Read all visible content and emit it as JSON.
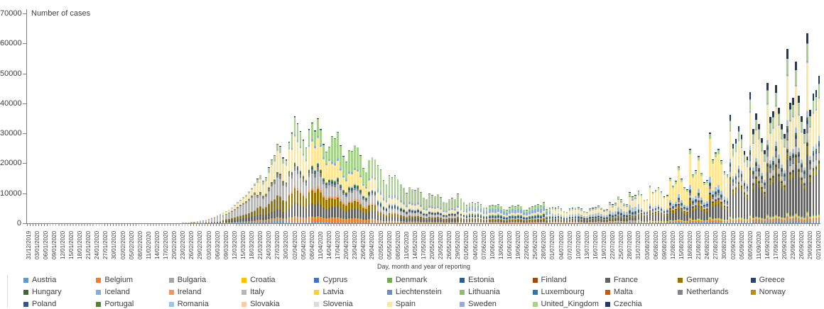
{
  "chart_data": {
    "type": "bar",
    "stacked": true,
    "ylabel": "Number of cases",
    "xlabel": "Day, month and year of reporting",
    "ylim": [
      0,
      70000
    ],
    "yticks": [
      0,
      10000,
      20000,
      30000,
      40000,
      50000,
      60000,
      70000
    ],
    "grid": false,
    "legend_position": "bottom",
    "x_start_date": "31/12/2019",
    "x_end_date": "02/10/2020",
    "bar_frequency": "daily",
    "n_bars": 277,
    "x_tick_labels": [
      "31/12/2019",
      "03/01/2020",
      "06/01/2020",
      "09/01/2020",
      "12/01/2020",
      "15/01/2020",
      "18/01/2020",
      "21/01/2020",
      "24/01/2020",
      "27/01/2020",
      "30/01/2020",
      "02/02/2020",
      "05/02/2020",
      "08/02/2020",
      "11/02/2020",
      "14/02/2020",
      "17/02/2020",
      "20/02/2020",
      "23/02/2020",
      "26/02/2020",
      "29/02/2020",
      "03/03/2020",
      "06/03/2020",
      "09/03/2020",
      "12/03/2020",
      "15/03/2020",
      "18/03/2020",
      "21/03/2020",
      "24/03/2020",
      "27/03/2020",
      "30/03/2020",
      "02/04/2020",
      "05/04/2020",
      "08/04/2020",
      "11/04/2020",
      "14/04/2020",
      "17/04/2020",
      "20/04/2020",
      "23/04/2020",
      "26/04/2020",
      "29/04/2020",
      "02/05/2020",
      "05/05/2020",
      "08/05/2020",
      "11/05/2020",
      "14/05/2020",
      "17/05/2020",
      "20/05/2020",
      "23/05/2020",
      "26/05/2020",
      "29/05/2020",
      "01/06/2020",
      "04/06/2020",
      "07/06/2020",
      "10/06/2020",
      "13/06/2020",
      "16/06/2020",
      "19/06/2020",
      "22/06/2020",
      "25/06/2020",
      "28/06/2020",
      "01/07/2020",
      "04/07/2020",
      "07/07/2020",
      "10/07/2020",
      "13/07/2020",
      "16/07/2020",
      "19/07/2020",
      "22/07/2020",
      "25/07/2020",
      "28/07/2020",
      "31/07/2020",
      "03/08/2020",
      "06/08/2020",
      "09/08/2020",
      "12/08/2020",
      "15/08/2020",
      "18/08/2020",
      "21/08/2020",
      "24/08/2020",
      "27/08/2020",
      "30/08/2020",
      "02/09/2020",
      "05/09/2020",
      "08/09/2020",
      "11/09/2020",
      "14/09/2020",
      "17/09/2020",
      "20/09/2020",
      "23/09/2020",
      "26/09/2020",
      "29/09/2020",
      "02/10/2020"
    ],
    "countries": [
      {
        "name": "Austria",
        "color": "#5B9BD5"
      },
      {
        "name": "Belgium",
        "color": "#ED7D31"
      },
      {
        "name": "Bulgaria",
        "color": "#A5A5A5"
      },
      {
        "name": "Croatia",
        "color": "#FFC000"
      },
      {
        "name": "Cyprus",
        "color": "#4472C4"
      },
      {
        "name": "Denmark",
        "color": "#70AD47"
      },
      {
        "name": "Estonia",
        "color": "#255E91"
      },
      {
        "name": "Finland",
        "color": "#9E480E"
      },
      {
        "name": "France",
        "color": "#636363"
      },
      {
        "name": "Germany",
        "color": "#997300"
      },
      {
        "name": "Greece",
        "color": "#264478"
      },
      {
        "name": "Hungary",
        "color": "#43682B"
      },
      {
        "name": "Iceland",
        "color": "#7CAFDD"
      },
      {
        "name": "Ireland",
        "color": "#F1975A"
      },
      {
        "name": "Italy",
        "color": "#B7B7B7"
      },
      {
        "name": "Latvia",
        "color": "#FFCD33"
      },
      {
        "name": "Liechtenstein",
        "color": "#698ED0"
      },
      {
        "name": "Lithuania",
        "color": "#8CC168"
      },
      {
        "name": "Luxembourg",
        "color": "#2E75B6"
      },
      {
        "name": "Malta",
        "color": "#C55A11"
      },
      {
        "name": "Netherlands",
        "color": "#848484"
      },
      {
        "name": "Norway",
        "color": "#BF8F00"
      },
      {
        "name": "Poland",
        "color": "#2F5597"
      },
      {
        "name": "Portugal",
        "color": "#548235"
      },
      {
        "name": "Romania",
        "color": "#9DC3E6"
      },
      {
        "name": "Slovakia",
        "color": "#F8CBAD"
      },
      {
        "name": "Slovenia",
        "color": "#DBDBDB"
      },
      {
        "name": "Spain",
        "color": "#FFE699"
      },
      {
        "name": "Sweden",
        "color": "#8FAADC"
      },
      {
        "name": "United_Kingdom",
        "color": "#A9D18E"
      },
      {
        "name": "Czechia",
        "color": "#1F3864"
      }
    ],
    "daily_totals": [
      0,
      0,
      0,
      0,
      0,
      0,
      0,
      0,
      0,
      0,
      0,
      0,
      0,
      0,
      0,
      0,
      0,
      0,
      0,
      0,
      0,
      0,
      0,
      0,
      0,
      0,
      0,
      0,
      0,
      0,
      0,
      0,
      0,
      0,
      0,
      0,
      0,
      0,
      0,
      0,
      0,
      0,
      0,
      0,
      0,
      0,
      0,
      0,
      0,
      0,
      0,
      30,
      60,
      100,
      150,
      220,
      300,
      420,
      550,
      700,
      850,
      1000,
      1200,
      1500,
      1850,
      2200,
      2600,
      3000,
      3500,
      4000,
      4600,
      5300,
      6100,
      7000,
      7900,
      8700,
      9400,
      10600,
      11900,
      13300,
      14800,
      16200,
      14200,
      15400,
      18600,
      21400,
      22800,
      26600,
      25800,
      21900,
      21200,
      27200,
      30200,
      35600,
      33400,
      30800,
      27800,
      25400,
      31400,
      33600,
      30900,
      35100,
      31400,
      26400,
      23900,
      25600,
      29100,
      28400,
      30600,
      25900,
      22400,
      20600,
      24400,
      24100,
      26100,
      25400,
      22600,
      18400,
      17100,
      21100,
      22100,
      21400,
      19400,
      17900,
      14400,
      13100,
      16100,
      15400,
      16000,
      14700,
      13100,
      11900,
      10100,
      12100,
      11400,
      11100,
      11900,
      10400,
      8600,
      8100,
      9900,
      9400,
      9100,
      9700,
      8700,
      7100,
      6900,
      8100,
      8400,
      8100,
      9900,
      8300,
      7100,
      6100,
      6900,
      7100,
      6600,
      7100,
      6300,
      5300,
      5100,
      5900,
      6100,
      5900,
      6400,
      5700,
      4800,
      4400,
      5400,
      5900,
      5600,
      6100,
      5700,
      4600,
      4400,
      5100,
      5600,
      5900,
      6400,
      5900,
      7100,
      4700,
      5100,
      5400,
      5100,
      5600,
      4900,
      4100,
      3900,
      4900,
      5100,
      5300,
      5400,
      4900,
      4100,
      3900,
      4900,
      5100,
      5400,
      5900,
      5300,
      4400,
      4700,
      7100,
      6300,
      6900,
      9100,
      8100,
      6700,
      6400,
      10300,
      8900,
      9400,
      10900,
      9700,
      7900,
      8100,
      12600,
      10400,
      11100,
      12100,
      10700,
      8900,
      9400,
      15100,
      12600,
      14100,
      18900,
      14900,
      12100,
      11300,
      24800,
      16400,
      17700,
      22400,
      16900,
      13700,
      14400,
      30200,
      21300,
      23600,
      24800,
      21100,
      17300,
      16400,
      36200,
      26400,
      28100,
      32400,
      29600,
      24100,
      22300,
      43700,
      31400,
      36600,
      33100,
      28400,
      24400,
      46900,
      35400,
      37400,
      46100,
      38600,
      33100,
      29900,
      58100,
      40200,
      41800,
      54000,
      42500,
      35800,
      31500,
      63400,
      37800,
      43300,
      44500,
      49200
    ],
    "composition_phases": [
      {
        "from": 0,
        "to": 51,
        "mix": {
          "Italy": 1
        }
      },
      {
        "from": 51,
        "to": 68,
        "mix": {
          "Austria": 0.01,
          "Belgium": 0.01,
          "France": 0.08,
          "Germany": 0.08,
          "Italy": 0.68,
          "Netherlands": 0.02,
          "Norway": 0.03,
          "Spain": 0.05,
          "Sweden": 0.02,
          "United_Kingdom": 0.02
        }
      },
      {
        "from": 68,
        "to": 80,
        "mix": {
          "Austria": 0.03,
          "Belgium": 0.03,
          "Denmark": 0.005,
          "France": 0.12,
          "Germany": 0.13,
          "Italy": 0.4,
          "Netherlands": 0.035,
          "Norway": 0.02,
          "Portugal": 0.005,
          "Spain": 0.17,
          "Sweden": 0.015,
          "United_Kingdom": 0.04
        }
      },
      {
        "from": 80,
        "to": 92,
        "mix": {
          "Austria": 0.03,
          "Belgium": 0.04,
          "Denmark": 0.005,
          "France": 0.1,
          "Germany": 0.17,
          "Ireland": 0.01,
          "Italy": 0.22,
          "Netherlands": 0.04,
          "Norway": 0.005,
          "Portugal": 0.02,
          "Spain": 0.27,
          "Sweden": 0.01,
          "United_Kingdom": 0.07,
          "Czechia": 0.01
        }
      },
      {
        "from": 92,
        "to": 106,
        "mix": {
          "Austria": 0.008,
          "Belgium": 0.055,
          "Denmark": 0.005,
          "France": 0.13,
          "Germany": 0.13,
          "Ireland": 0.025,
          "Italy": 0.14,
          "Netherlands": 0.04,
          "Norway": 0.003,
          "Poland": 0.01,
          "Portugal": 0.02,
          "Romania": 0.008,
          "Spain": 0.24,
          "Sweden": 0.02,
          "United_Kingdom": 0.16,
          "Czechia": 0.008
        }
      },
      {
        "from": 106,
        "to": 122,
        "mix": {
          "Austria": 0.005,
          "Belgium": 0.055,
          "Denmark": 0.005,
          "France": 0.12,
          "Germany": 0.08,
          "Hungary": 0.005,
          "Ireland": 0.03,
          "Italy": 0.11,
          "Netherlands": 0.03,
          "Poland": 0.015,
          "Portugal": 0.02,
          "Romania": 0.012,
          "Spain": 0.17,
          "Sweden": 0.025,
          "United_Kingdom": 0.28,
          "Czechia": 0.005
        }
      },
      {
        "from": 122,
        "to": 153,
        "mix": {
          "Belgium": 0.03,
          "Bulgaria": 0.01,
          "Denmark": 0.005,
          "France": 0.08,
          "Germany": 0.05,
          "Hungary": 0.005,
          "Ireland": 0.015,
          "Italy": 0.07,
          "Netherlands": 0.02,
          "Poland": 0.035,
          "Portugal": 0.015,
          "Romania": 0.025,
          "Spain": 0.11,
          "Sweden": 0.055,
          "United_Kingdom": 0.36,
          "Czechia": 0.005
        }
      },
      {
        "from": 153,
        "to": 183,
        "mix": {
          "Belgium": 0.02,
          "Bulgaria": 0.02,
          "Croatia": 0.01,
          "Denmark": 0.01,
          "France": 0.07,
          "Germany": 0.06,
          "Italy": 0.045,
          "Netherlands": 0.01,
          "Poland": 0.055,
          "Portugal": 0.055,
          "Romania": 0.05,
          "Spain": 0.08,
          "Sweden": 0.17,
          "United_Kingdom": 0.16,
          "Czechia": 0.01
        }
      },
      {
        "from": 183,
        "to": 214,
        "mix": {
          "Austria": 0.01,
          "Belgium": 0.025,
          "Bulgaria": 0.03,
          "Croatia": 0.015,
          "France": 0.09,
          "Germany": 0.055,
          "Greece": 0.01,
          "Italy": 0.02,
          "Luxembourg": 0.01,
          "Netherlands": 0.02,
          "Poland": 0.05,
          "Portugal": 0.025,
          "Romania": 0.135,
          "Spain": 0.23,
          "Sweden": 0.03,
          "United_Kingdom": 0.08,
          "Czechia": 0.015
        }
      },
      {
        "from": 214,
        "to": 245,
        "mix": {
          "Austria": 0.012,
          "Belgium": 0.025,
          "Bulgaria": 0.008,
          "Croatia": 0.012,
          "Denmark": 0.008,
          "France": 0.17,
          "Germany": 0.055,
          "Greece": 0.015,
          "Ireland": 0.008,
          "Italy": 0.03,
          "Malta": 0.004,
          "Netherlands": 0.025,
          "Poland": 0.03,
          "Portugal": 0.008,
          "Romania": 0.055,
          "Spain": 0.38,
          "United_Kingdom": 0.05,
          "Czechia": 0.012
        }
      },
      {
        "from": 245,
        "to": 277,
        "mix": {
          "Austria": 0.014,
          "Belgium": 0.022,
          "Bulgaria": 0.006,
          "Croatia": 0.012,
          "Denmark": 0.008,
          "France": 0.3,
          "Germany": 0.045,
          "Greece": 0.006,
          "Hungary": 0.012,
          "Iceland": 0.002,
          "Ireland": 0.01,
          "Italy": 0.035,
          "Lithuania": 0.004,
          "Luxembourg": 0.004,
          "Netherlands": 0.042,
          "Poland": 0.02,
          "Portugal": 0.016,
          "Romania": 0.032,
          "Slovakia": 0.005,
          "Spain": 0.25,
          "Sweden": 0.01,
          "United_Kingdom": 0.09,
          "Czechia": 0.055
        }
      }
    ],
    "colors": {
      "background": "#FFFFFF",
      "axis": "#7F7F7F",
      "text": "#404040"
    }
  }
}
